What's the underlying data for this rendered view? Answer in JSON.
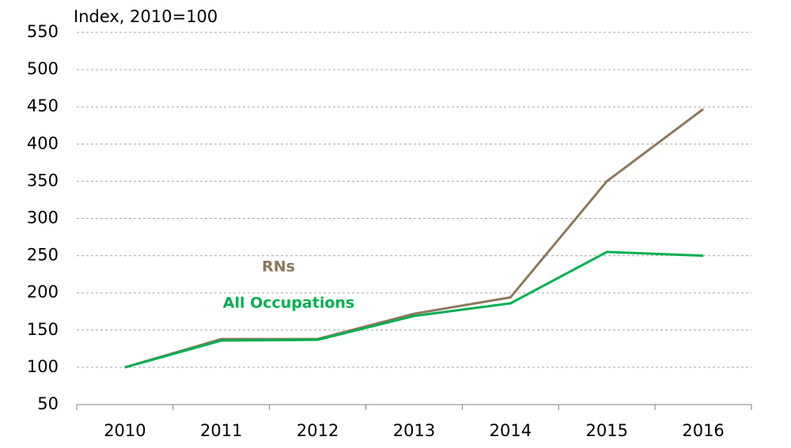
{
  "chart_data": {
    "type": "line",
    "y_axis_label": "Index, 2010=100",
    "categories": [
      "2010",
      "2011",
      "2012",
      "2013",
      "2014",
      "2015",
      "2016"
    ],
    "series": [
      {
        "name": "RNs",
        "color": "#8c785c",
        "values": [
          100,
          138,
          138,
          172,
          194,
          350,
          447
        ]
      },
      {
        "name": "All Occupations",
        "color": "#00b050",
        "values": [
          100,
          136,
          137,
          169,
          186,
          255,
          250
        ]
      }
    ],
    "ylim": [
      50,
      550
    ],
    "yticks": [
      50,
      100,
      150,
      200,
      250,
      300,
      350,
      400,
      450,
      500,
      550
    ],
    "grid": true
  }
}
